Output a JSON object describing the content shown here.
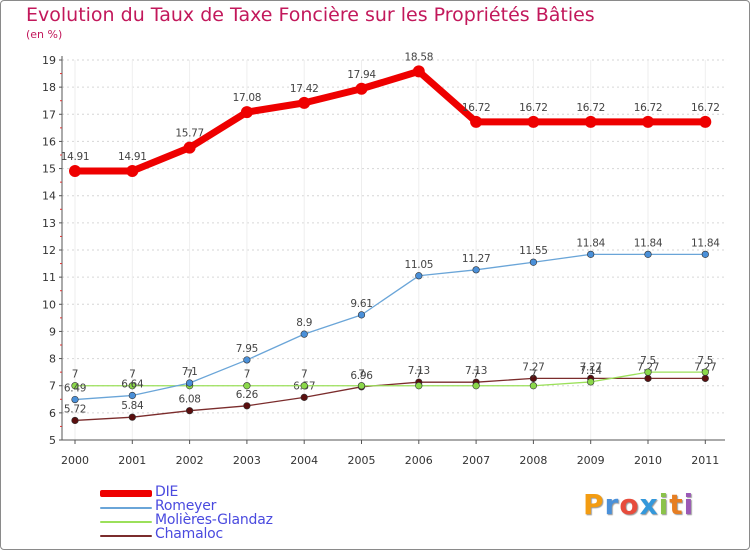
{
  "title": "Evolution du Taux de Taxe Foncière sur les Propriétés Bâties",
  "subtitle": "(en %)",
  "logo": {
    "text": "Proxiti",
    "colors": [
      "#f39c12",
      "#4a90d9",
      "#e74c3c",
      "#3498db",
      "#8bc34a",
      "#e67e22",
      "#9b59b6"
    ]
  },
  "chart_data": {
    "type": "line",
    "categories": [
      "2000",
      "2001",
      "2002",
      "2003",
      "2004",
      "2005",
      "2006",
      "2007",
      "2008",
      "2009",
      "2010",
      "2011"
    ],
    "ylim": [
      5,
      19
    ],
    "yticks": [
      5,
      6,
      7,
      8,
      9,
      10,
      11,
      12,
      13,
      14,
      15,
      16,
      17,
      18,
      19
    ],
    "series": [
      {
        "name": "Chamaloc",
        "color": "#7b2c2c",
        "marker": "#5a0f0f",
        "values": [
          5.72,
          5.84,
          6.08,
          6.26,
          6.57,
          6.96,
          7.13,
          7.13,
          7.27,
          7.27,
          7.27,
          7.27
        ],
        "labels": [
          "5.72",
          "5.84",
          "6.08",
          "6.26",
          "6.57",
          "6.96",
          "7.13",
          "7.13",
          "7.27",
          "7.27",
          "7.27",
          "7.27"
        ]
      },
      {
        "name": "Molières-Glandaz",
        "color": "#9be05a",
        "marker": "#8bd84a",
        "values": [
          7,
          7,
          7,
          7,
          7,
          7,
          7,
          7,
          7,
          7.14,
          7.5,
          7.5
        ],
        "labels": [
          "7",
          "7",
          "7",
          "7",
          "7",
          "7",
          "7",
          "7",
          "7",
          "7.14",
          "7.5",
          "7.5"
        ]
      },
      {
        "name": "Romeyer",
        "color": "#6aa5d8",
        "marker": "#4a90d9",
        "values": [
          6.49,
          6.64,
          7.1,
          7.95,
          8.9,
          9.61,
          11.05,
          11.27,
          11.55,
          11.84,
          11.84,
          11.84
        ],
        "labels": [
          "6.49",
          "6.64",
          "7.1",
          "7.95",
          "8.9",
          "9.61",
          "11.05",
          "11.27",
          "11.55",
          "11.84",
          "11.84",
          "11.84"
        ]
      },
      {
        "name": "DIE",
        "color": "#ee0000",
        "marker": "#ee0000",
        "values": [
          14.91,
          14.91,
          15.77,
          17.08,
          17.42,
          17.94,
          18.58,
          16.72,
          16.72,
          16.72,
          16.72,
          16.72
        ],
        "labels": [
          "14.91",
          "14.91",
          "15.77",
          "17.08",
          "17.42",
          "17.94",
          "18.58",
          "16.72",
          "16.72",
          "16.72",
          "16.72",
          "16.72"
        ]
      }
    ],
    "legend": [
      {
        "name": "DIE",
        "color": "#ee0000",
        "weight": "thick"
      },
      {
        "name": "Romeyer",
        "color": "#6aa5d8",
        "weight": "thin"
      },
      {
        "name": "Molières-Glandaz",
        "color": "#9be05a",
        "weight": "thin"
      },
      {
        "name": "Chamaloc",
        "color": "#7b2c2c",
        "weight": "thin"
      }
    ]
  }
}
